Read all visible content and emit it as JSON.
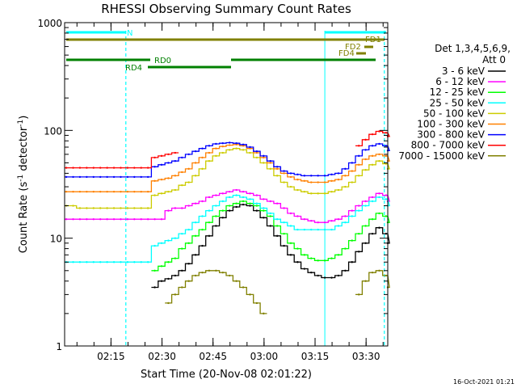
{
  "chart_data": {
    "type": "line",
    "title": "RHESSI Observing Summary Count Rates",
    "xlabel": "Start Time (20-Nov-08 02:01:22)",
    "ylabel_main": "Count Rate (s",
    "ylabel_sup1": "-1",
    "ylabel_mid": " detector",
    "ylabel_sup2": "-1",
    "ylabel_end": ")",
    "yscale": "log",
    "ylim": [
      1,
      1000
    ],
    "xlim_minutes": [
      0,
      95
    ],
    "y_ticks": [
      {
        "value": 1,
        "label": "1"
      },
      {
        "value": 10,
        "label": "10"
      },
      {
        "value": 100,
        "label": "100"
      },
      {
        "value": 1000,
        "label": "1000"
      }
    ],
    "x_ticks": [
      {
        "minute": 13.63,
        "label": "02:15"
      },
      {
        "minute": 28.63,
        "label": "02:30"
      },
      {
        "minute": 43.63,
        "label": "02:45"
      },
      {
        "minute": 58.63,
        "label": "03:00"
      },
      {
        "minute": 73.63,
        "label": "03:15"
      },
      {
        "minute": 88.63,
        "label": "03:30"
      }
    ],
    "legend_header": [
      "Det 1,3,4,5,6,9,",
      "Att 0"
    ],
    "legend_position": "right",
    "series": [
      {
        "name": "3 - 6 keV",
        "color": "#000000",
        "values": [
          null,
          null,
          null,
          null,
          null,
          null,
          null,
          null,
          null,
          null,
          null,
          null,
          null,
          3.5,
          4,
          4.2,
          4.5,
          5.0,
          5.8,
          7,
          8.5,
          10.5,
          13,
          15.5,
          18,
          19.5,
          20.5,
          20,
          18,
          15.5,
          13,
          10.5,
          8.5,
          7,
          6,
          5.2,
          4.8,
          4.5,
          4.3,
          4.3,
          4.5,
          5,
          6,
          7.5,
          9,
          11,
          12.5,
          11,
          9,
          null
        ]
      },
      {
        "name": "6 - 12 keV",
        "color": "#ff00ff",
        "values": [
          15,
          15,
          15,
          15,
          15,
          15,
          15,
          15,
          15,
          15,
          15,
          15,
          15,
          15,
          15,
          18,
          19,
          19,
          20,
          21,
          22,
          24,
          25,
          26,
          27,
          28,
          27,
          26,
          25,
          23,
          22,
          21,
          19,
          17,
          16,
          15,
          14.5,
          14,
          14,
          14.5,
          15,
          16,
          18,
          20,
          22,
          24,
          26,
          25,
          22,
          null
        ]
      },
      {
        "name": "12 - 25 keV",
        "color": "#00ff00",
        "values": [
          null,
          null,
          null,
          null,
          null,
          null,
          null,
          null,
          null,
          null,
          null,
          null,
          null,
          5,
          5.5,
          6,
          6.5,
          8,
          9,
          10.5,
          12,
          14,
          16,
          18,
          20,
          21,
          22,
          21,
          20,
          18,
          16,
          13,
          11,
          9,
          8,
          7,
          6.5,
          6.2,
          6.2,
          6.5,
          7,
          8,
          9.5,
          11,
          13,
          15,
          17,
          16,
          14,
          null
        ]
      },
      {
        "name": "25 - 50 keV",
        "color": "#00ffff",
        "values": [
          6,
          6,
          6,
          6,
          6,
          6,
          6,
          6,
          6,
          6,
          6,
          6,
          6,
          8.5,
          9,
          9.5,
          10,
          11,
          12,
          14,
          16,
          18,
          20,
          22,
          24,
          25,
          24,
          23,
          21,
          19,
          17,
          15,
          14,
          13,
          12,
          12,
          12,
          12,
          12,
          12,
          13,
          14,
          16,
          18,
          20,
          22,
          24,
          23,
          20,
          null
        ]
      },
      {
        "name": "50 - 100 keV",
        "color": "#cccc00",
        "values": [
          20,
          20,
          19,
          19,
          19,
          19,
          19,
          19,
          19,
          19,
          19,
          19,
          19,
          25,
          26,
          27,
          28,
          31,
          33,
          38,
          44,
          52,
          58,
          62,
          66,
          68,
          66,
          62,
          56,
          50,
          44,
          38,
          33,
          30,
          28,
          27,
          26,
          26,
          26,
          27,
          28,
          30,
          33,
          38,
          43,
          48,
          52,
          49,
          44,
          null
        ]
      },
      {
        "name": "100 - 300 keV",
        "color": "#ff8000",
        "values": [
          27,
          27,
          27,
          27,
          27,
          27,
          27,
          27,
          27,
          27,
          27,
          27,
          27,
          34,
          35,
          36,
          38,
          41,
          44,
          50,
          56,
          62,
          68,
          71,
          73,
          74,
          72,
          68,
          62,
          56,
          50,
          44,
          40,
          37,
          35,
          34,
          33,
          33,
          33,
          34,
          35,
          38,
          42,
          48,
          54,
          58,
          60,
          58,
          52,
          null
        ]
      },
      {
        "name": "300 - 800 keV",
        "color": "#0000ff",
        "values": [
          37,
          37,
          37,
          37,
          37,
          37,
          37,
          37,
          37,
          37,
          37,
          37,
          37,
          46,
          48,
          50,
          52,
          56,
          60,
          64,
          68,
          72,
          75,
          76,
          77,
          76,
          74,
          70,
          64,
          58,
          52,
          46,
          42,
          40,
          39,
          38,
          38,
          38,
          38,
          39,
          40,
          44,
          50,
          58,
          66,
          72,
          75,
          72,
          65,
          null
        ]
      },
      {
        "name": "800 - 7000 keV",
        "color": "#ff0000",
        "values": [
          45,
          45,
          45,
          45,
          45,
          45,
          45,
          45,
          45,
          45,
          45,
          45,
          45,
          56,
          58,
          60,
          62,
          null,
          null,
          null,
          null,
          null,
          null,
          null,
          null,
          null,
          null,
          null,
          null,
          null,
          null,
          null,
          null,
          null,
          null,
          null,
          null,
          null,
          null,
          null,
          null,
          null,
          null,
          72,
          82,
          92,
          98,
          95,
          88,
          null
        ]
      },
      {
        "name": "7000 - 15000 keV",
        "color": "#808000",
        "values": [
          null,
          null,
          null,
          null,
          null,
          null,
          null,
          null,
          null,
          null,
          null,
          null,
          null,
          null,
          null,
          2.5,
          3,
          3.5,
          4,
          4.5,
          4.8,
          5,
          5,
          4.8,
          4.5,
          4,
          3.5,
          3,
          2.5,
          2,
          null,
          null,
          null,
          null,
          null,
          null,
          null,
          null,
          null,
          null,
          null,
          null,
          null,
          3,
          4,
          4.8,
          5,
          4.5,
          3.5,
          null
        ]
      }
    ],
    "annotations": {
      "N_label": "N",
      "FD1_label": "FD1",
      "FD2_label": "FD2",
      "FD4_label": "FD4",
      "RD0_label": "RD0",
      "RD4_label": "RD4"
    },
    "timestamp": "16-Oct-2021 01:21",
    "colors": {
      "night_bar": "#00ffff",
      "fd_bar": "#808000",
      "rd_bar": "#008000",
      "axis": "#000000"
    }
  }
}
